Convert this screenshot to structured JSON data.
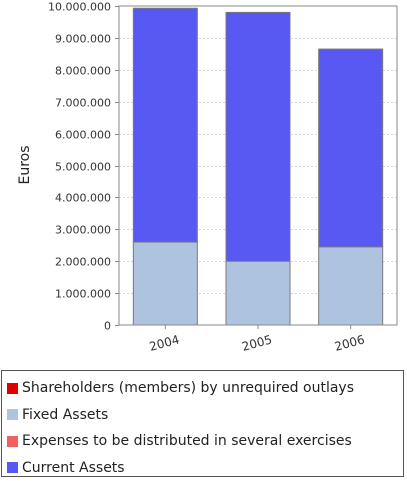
{
  "chart_data": {
    "type": "bar",
    "stacked": true,
    "categories": [
      "2004",
      "2005",
      "2006"
    ],
    "ylabel": "Euros",
    "xlabel": "",
    "ylim": [
      0,
      10000000
    ],
    "yticks": [
      {
        "value": 0,
        "label": "0"
      },
      {
        "value": 1000000,
        "label": "1.000.000"
      },
      {
        "value": 2000000,
        "label": "2.000.000"
      },
      {
        "value": 3000000,
        "label": "3.000.000"
      },
      {
        "value": 4000000,
        "label": "4.000.000"
      },
      {
        "value": 5000000,
        "label": "5.000.000"
      },
      {
        "value": 6000000,
        "label": "6.000.000"
      },
      {
        "value": 7000000,
        "label": "7.000.000"
      },
      {
        "value": 8000000,
        "label": "8.000.000"
      },
      {
        "value": 9000000,
        "label": "9.000.000"
      },
      {
        "value": 10000000,
        "label": "10.000.000"
      }
    ],
    "grid": "horizontal dashed",
    "legend_position": "bottom",
    "series": [
      {
        "name": "Shareholders (members) by unrequired outlays",
        "color": "#e00000",
        "values": [
          0,
          0,
          0
        ]
      },
      {
        "name": "Fixed Assets",
        "color": "#adc3e0",
        "values": [
          2600000,
          2000000,
          2450000
        ]
      },
      {
        "name": "Expenses to be distributed in several exercises",
        "color": "#f06060",
        "values": [
          0,
          0,
          0
        ]
      },
      {
        "name": "Current Assets",
        "color": "#5858f2",
        "values": [
          7330000,
          7800000,
          6200000
        ]
      }
    ]
  }
}
